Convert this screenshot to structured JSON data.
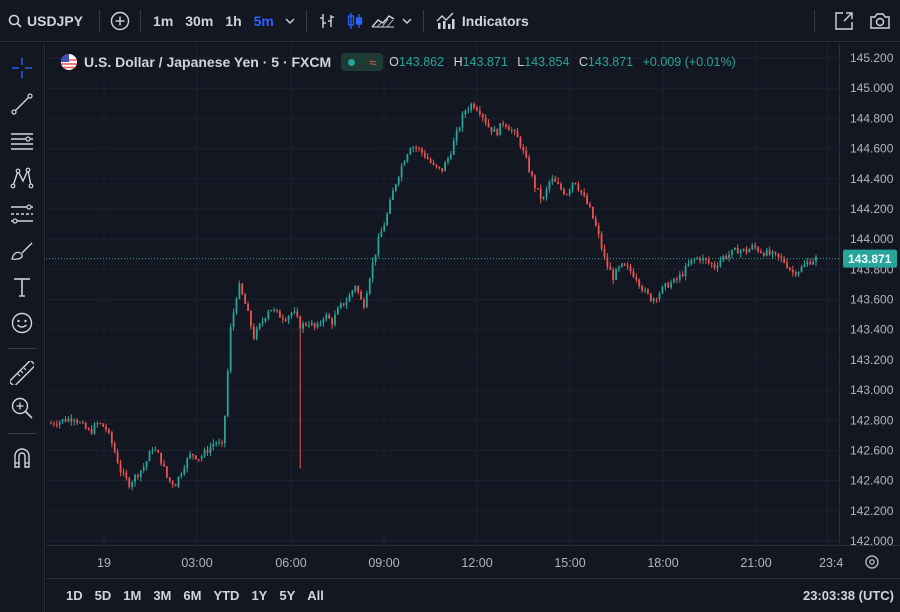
{
  "toolbar": {
    "symbol": "USDJPY",
    "intervals": [
      "1m",
      "30m",
      "1h",
      "5m"
    ],
    "active_interval": "5m",
    "indicators_label": "Indicators"
  },
  "legend": {
    "title": "U.S. Dollar / Japanese Yen · 5 · FXCM",
    "open_label": "O",
    "open": "143.862",
    "high_label": "H",
    "high": "143.871",
    "low_label": "L",
    "low": "143.854",
    "close_label": "C",
    "close": "143.871",
    "change": "+0.009 (+0.01%)"
  },
  "price_axis": {
    "labels": [
      "145.200",
      "145.000",
      "144.800",
      "144.600",
      "144.400",
      "144.200",
      "144.000",
      "143.800",
      "143.600",
      "143.400",
      "143.200",
      "143.000",
      "142.800",
      "142.600",
      "142.400",
      "142.200",
      "142.000"
    ],
    "last_price": "143.871"
  },
  "time_axis": {
    "labels": [
      "19",
      "03:00",
      "06:00",
      "09:00",
      "12:00",
      "15:00",
      "18:00",
      "21:00",
      "23:4"
    ]
  },
  "range_buttons": [
    "1D",
    "5D",
    "1M",
    "3M",
    "6M",
    "YTD",
    "1Y",
    "5Y",
    "All"
  ],
  "clock": "23:03:38 (UTC)",
  "colors": {
    "up": "#26a69a",
    "down": "#ef5350",
    "accent": "#2962ff",
    "background": "#131722"
  },
  "chart_data": {
    "type": "candlestick",
    "ylim": [
      142.0,
      145.2
    ],
    "price_labels": [
      "145.200",
      "145.000",
      "144.800",
      "144.600",
      "144.400",
      "144.200",
      "144.000",
      "143.800",
      "143.600",
      "143.400",
      "143.200",
      "143.000",
      "142.800",
      "142.600",
      "142.400",
      "142.200",
      "142.000"
    ],
    "time_labels": [
      "19",
      "03:00",
      "06:00",
      "09:00",
      "12:00",
      "15:00",
      "18:00",
      "21:00",
      "23:4"
    ],
    "last_price": 143.871,
    "path": [
      [
        0,
        142.78
      ],
      [
        3,
        142.8
      ],
      [
        6,
        142.82
      ],
      [
        8,
        142.76
      ],
      [
        10,
        142.72
      ],
      [
        12,
        142.78
      ],
      [
        14,
        142.75
      ],
      [
        16,
        142.62
      ],
      [
        18,
        142.45
      ],
      [
        20,
        142.38
      ],
      [
        22,
        142.44
      ],
      [
        24,
        142.5
      ],
      [
        26,
        142.62
      ],
      [
        28,
        142.55
      ],
      [
        30,
        142.4
      ],
      [
        32,
        142.38
      ],
      [
        34,
        142.5
      ],
      [
        36,
        142.58
      ],
      [
        38,
        142.55
      ],
      [
        40,
        142.6
      ],
      [
        42,
        142.66
      ],
      [
        44,
        142.62
      ],
      [
        46,
        143.4
      ],
      [
        48,
        143.7
      ],
      [
        50,
        143.55
      ],
      [
        52,
        143.35
      ],
      [
        54,
        143.45
      ],
      [
        56,
        143.55
      ],
      [
        58,
        143.5
      ],
      [
        60,
        143.48
      ],
      [
        62,
        143.52
      ],
      [
        64,
        143.42
      ],
      [
        66,
        143.45
      ],
      [
        68,
        143.4
      ],
      [
        70,
        143.5
      ],
      [
        72,
        143.45
      ],
      [
        74,
        143.55
      ],
      [
        76,
        143.6
      ],
      [
        78,
        143.7
      ],
      [
        80,
        143.55
      ],
      [
        82,
        143.8
      ],
      [
        84,
        144.0
      ],
      [
        86,
        144.15
      ],
      [
        88,
        144.35
      ],
      [
        90,
        144.5
      ],
      [
        92,
        144.62
      ],
      [
        94,
        144.6
      ],
      [
        96,
        144.55
      ],
      [
        98,
        144.48
      ],
      [
        100,
        144.45
      ],
      [
        102,
        144.55
      ],
      [
        104,
        144.7
      ],
      [
        106,
        144.85
      ],
      [
        108,
        144.9
      ],
      [
        110,
        144.85
      ],
      [
        112,
        144.75
      ],
      [
        114,
        144.7
      ],
      [
        116,
        144.78
      ],
      [
        118,
        144.72
      ],
      [
        120,
        144.65
      ],
      [
        122,
        144.5
      ],
      [
        124,
        144.35
      ],
      [
        126,
        144.25
      ],
      [
        128,
        144.4
      ],
      [
        130,
        144.35
      ],
      [
        132,
        144.3
      ],
      [
        134,
        144.4
      ],
      [
        136,
        144.3
      ],
      [
        138,
        144.2
      ],
      [
        140,
        144.05
      ],
      [
        142,
        143.85
      ],
      [
        144,
        143.75
      ],
      [
        146,
        143.82
      ],
      [
        148,
        143.8
      ],
      [
        150,
        143.75
      ],
      [
        152,
        143.65
      ],
      [
        154,
        143.6
      ],
      [
        156,
        143.65
      ],
      [
        158,
        143.7
      ],
      [
        160,
        143.72
      ],
      [
        162,
        143.78
      ],
      [
        164,
        143.85
      ],
      [
        166,
        143.88
      ],
      [
        168,
        143.85
      ],
      [
        170,
        143.82
      ],
      [
        172,
        143.88
      ],
      [
        174,
        143.9
      ],
      [
        176,
        143.93
      ],
      [
        178,
        143.92
      ],
      [
        180,
        143.95
      ],
      [
        182,
        143.92
      ],
      [
        184,
        143.9
      ],
      [
        186,
        143.88
      ],
      [
        188,
        143.85
      ],
      [
        190,
        143.78
      ],
      [
        192,
        143.8
      ],
      [
        194,
        143.85
      ],
      [
        196,
        143.87
      ]
    ],
    "spike": {
      "t": 64,
      "low": 142.48
    }
  }
}
